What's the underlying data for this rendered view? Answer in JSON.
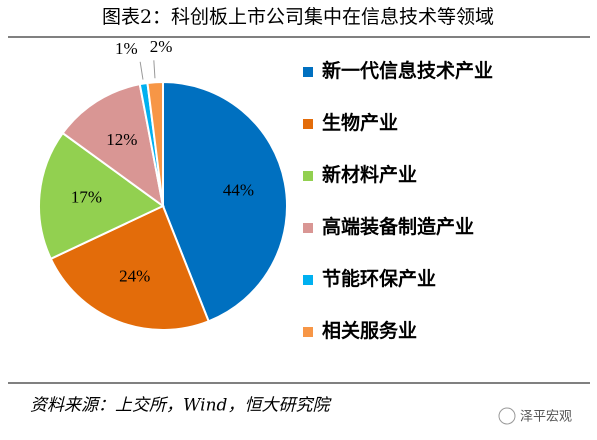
{
  "chart_data": {
    "type": "pie",
    "title": "图表2：科创板上市公司集中在信息技术等领域",
    "categories": [
      "新一代信息技术产业",
      "生物产业",
      "新材料产业",
      "高端装备制造产业",
      "节能环保产业",
      "相关服务业"
    ],
    "values": [
      44,
      24,
      17,
      12,
      1,
      2
    ],
    "value_labels": [
      "44%",
      "24%",
      "17%",
      "12%",
      "1%",
      "2%"
    ],
    "colors": [
      "#0070c0",
      "#e36c0a",
      "#92d050",
      "#d99694",
      "#00b0f0",
      "#f79646"
    ],
    "legend": "right",
    "source": "资料来源：上交所，Wind，恒大研究院",
    "watermark": "泽平宏观"
  }
}
